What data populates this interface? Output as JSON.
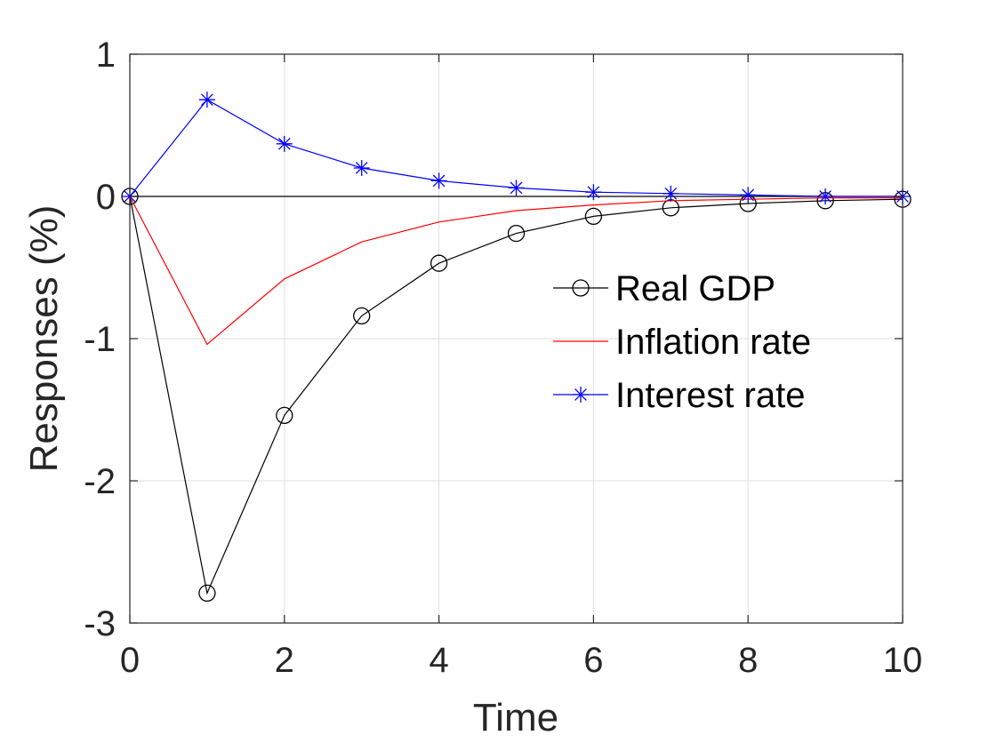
{
  "chart_data": {
    "type": "line",
    "title": "",
    "xlabel": "Time",
    "ylabel": "Responses (%)",
    "xlim": [
      0,
      10
    ],
    "ylim": [
      -3,
      1
    ],
    "x_ticks": [
      0,
      2,
      4,
      6,
      8,
      10
    ],
    "y_ticks": [
      -3,
      -2,
      -1,
      0,
      1
    ],
    "grid": true,
    "zero_line": true,
    "legend_position": "center-right",
    "x": [
      0,
      1,
      2,
      3,
      4,
      5,
      6,
      7,
      8,
      9,
      10
    ],
    "series": [
      {
        "name": "Real GDP",
        "color": "#000000",
        "marker": "circle",
        "values": [
          0,
          -2.79,
          -1.54,
          -0.84,
          -0.47,
          -0.26,
          -0.14,
          -0.08,
          -0.05,
          -0.03,
          -0.02
        ]
      },
      {
        "name": "Inflation rate",
        "color": "#ff0000",
        "marker": "none",
        "values": [
          0,
          -1.04,
          -0.58,
          -0.32,
          -0.18,
          -0.1,
          -0.06,
          -0.03,
          -0.02,
          -0.01,
          -0.01
        ]
      },
      {
        "name": "Interest rate",
        "color": "#0000ff",
        "marker": "asterisk",
        "values": [
          0,
          0.68,
          0.37,
          0.2,
          0.11,
          0.06,
          0.03,
          0.02,
          0.01,
          0.0,
          0.0
        ]
      }
    ]
  }
}
